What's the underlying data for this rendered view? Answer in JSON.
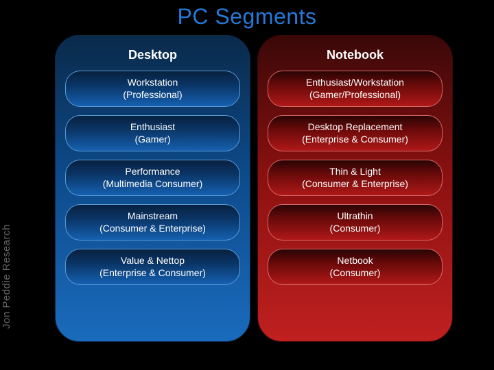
{
  "title": "PC Segments",
  "watermark": "Jon Peddie Research",
  "columns": [
    {
      "key": "desktop",
      "header": "Desktop",
      "panel_gradient": [
        "#0a2a4a",
        "#0d4a8a",
        "#1a6bbd"
      ],
      "segment_gradient": [
        "#082040",
        "#0a3566",
        "#1560b0"
      ],
      "segment_border": "#5a9bd6",
      "segments": [
        {
          "line1": "Workstation",
          "line2": "(Professional)"
        },
        {
          "line1": "Enthusiast",
          "line2": "(Gamer)"
        },
        {
          "line1": "Performance",
          "line2": "(Multimedia Consumer)"
        },
        {
          "line1": "Mainstream",
          "line2": "(Consumer & Enterprise)"
        },
        {
          "line1": "Value & Nettop",
          "line2": "(Enterprise & Consumer)"
        }
      ]
    },
    {
      "key": "notebook",
      "header": "Notebook",
      "panel_gradient": [
        "#3a0808",
        "#8a1010",
        "#c02020"
      ],
      "segment_gradient": [
        "#2a0404",
        "#6a0a0a",
        "#b01818"
      ],
      "segment_border": "#d66a6a",
      "segments": [
        {
          "line1": "Enthusiast/Workstation",
          "line2": "(Gamer/Professional)"
        },
        {
          "line1": "Desktop Replacement",
          "line2": "(Enterprise & Consumer)"
        },
        {
          "line1": "Thin & Light",
          "line2": "(Consumer & Enterprise)"
        },
        {
          "line1": "Ultrathin",
          "line2": "(Consumer)"
        },
        {
          "line1": "Netbook",
          "line2": "(Consumer)"
        }
      ]
    }
  ],
  "style": {
    "title_color": "#2579d8",
    "title_fontsize": 32,
    "header_fontsize": 18,
    "segment_fontsize": 14,
    "panel_radius": 36,
    "segment_radius": 22,
    "background": "#000000"
  }
}
